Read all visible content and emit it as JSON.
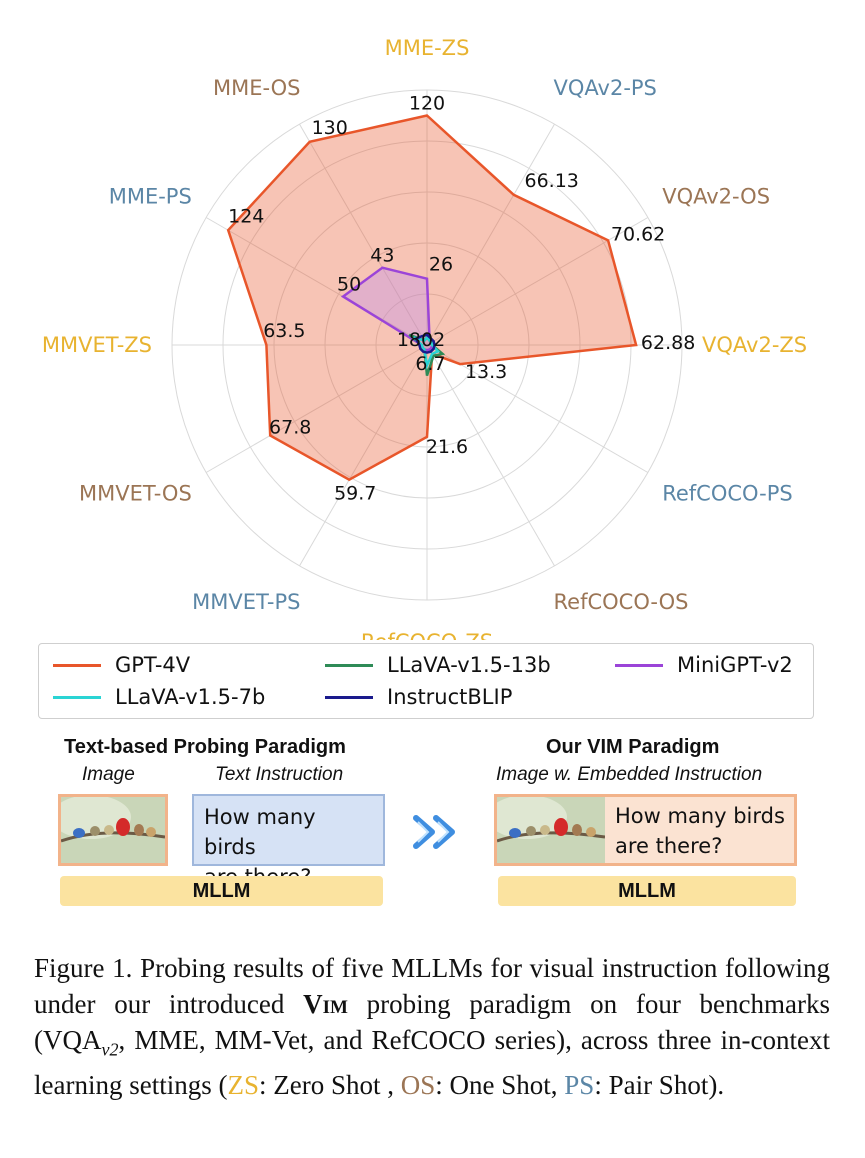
{
  "chart_data": {
    "type": "radar",
    "axes": [
      {
        "name": "MME-ZS",
        "color": "#e8b330"
      },
      {
        "name": "VQAv2-PS",
        "color": "#5b86a6"
      },
      {
        "name": "VQAv2-OS",
        "color": "#9b7555"
      },
      {
        "name": "VQAv2-ZS",
        "color": "#e8b330"
      },
      {
        "name": "RefCOCO-PS",
        "color": "#5b86a6"
      },
      {
        "name": "RefCOCO-OS",
        "color": "#9b7555"
      },
      {
        "name": "RefCOCO-ZS",
        "color": "#e8b330"
      },
      {
        "name": "MMVET-PS",
        "color": "#5b86a6"
      },
      {
        "name": "MMVET-OS",
        "color": "#9b7555"
      },
      {
        "name": "MMVET-ZS",
        "color": "#e8b330"
      },
      {
        "name": "MME-PS",
        "color": "#5b86a6"
      },
      {
        "name": "MME-OS",
        "color": "#9b7555"
      }
    ],
    "series": [
      {
        "name": "GPT-4V",
        "color": "#e8562a",
        "fill": true,
        "normalized": [
          0.9,
          0.68,
          0.82,
          0.82,
          0.15,
          0.04,
          0.36,
          0.61,
          0.71,
          0.63,
          0.9,
          0.92
        ],
        "labels": [
          "120",
          "66.13",
          "70.62",
          "62.88",
          "13.3",
          "",
          "21.6",
          "59.7",
          "67.8",
          "63.5",
          "124",
          "130"
        ]
      },
      {
        "name": "LLaVA-v1.5-13b",
        "color": "#2e8b57",
        "fill": false,
        "normalized": [
          0.03,
          0.02,
          0.02,
          0.02,
          0.07,
          0.05,
          0.12,
          0.02,
          0.02,
          0.02,
          0.08,
          0.02
        ],
        "labels": [
          "",
          "",
          "",
          "",
          "6.7",
          "",
          "",
          "",
          "",
          "",
          "",
          ""
        ]
      },
      {
        "name": "MiniGPT-v2",
        "color": "#9b44d8",
        "fill": false,
        "normalized": [
          0.26,
          0.02,
          0.02,
          0.02,
          0.02,
          0.02,
          0.02,
          0.02,
          0.02,
          0.02,
          0.38,
          0.35
        ],
        "labels": [
          "26",
          "",
          "",
          "",
          "",
          "",
          "",
          "",
          "",
          "",
          "50",
          "43"
        ]
      },
      {
        "name": "LLaVA-v1.5-7b",
        "color": "#2ad4d4",
        "fill": false,
        "normalized": [
          0.03,
          0.02,
          0.02,
          0.02,
          0.05,
          0.04,
          0.08,
          0.02,
          0.02,
          0.02,
          0.06,
          0.02
        ],
        "labels": [
          "",
          "",
          "",
          "",
          "",
          "",
          "",
          "",
          "",
          "",
          "",
          ""
        ]
      },
      {
        "name": "InstructBLIP",
        "color": "#1a1a8c",
        "fill": false,
        "normalized": [
          0.04,
          0.03,
          0.03,
          0.03,
          0.03,
          0.03,
          0.03,
          0.03,
          0.03,
          0.03,
          0.05,
          0.04
        ],
        "labels": [
          "",
          "",
          "",
          "",
          "",
          "",
          "",
          "",
          "",
          "",
          "",
          ""
        ]
      }
    ],
    "center_labels": "1802",
    "grid": true,
    "legend_position": "bottom"
  },
  "paradigm": {
    "left_title": "Text-based Probing Paradigm",
    "left_sub_image": "Image",
    "left_sub_text": "Text Instruction",
    "left_instruction_line1": "How many birds",
    "left_instruction_line2": "are there?",
    "right_title": "Our VIM Paradigm",
    "right_sub": "Image w. Embedded Instruction",
    "right_instruction_line1": "How many birds",
    "right_instruction_line2": "are there?",
    "mllm_label": "MLLM"
  },
  "caption": {
    "part1": "Figure 1.  Probing results of five MLLMs for visual instruction following under our introduced ",
    "vim": "Vim",
    "part2": " probing paradigm on four benchmarks (VQA",
    "sub": "v2",
    "part3": ", MME, MM-Vet, and RefCOCO series), across three in-context learning settings (",
    "zs": "ZS",
    "part4": ": Zero Shot , ",
    "os": "OS",
    "part5": ": One Shot, ",
    "ps": "PS",
    "part6": ": Pair Shot)."
  }
}
